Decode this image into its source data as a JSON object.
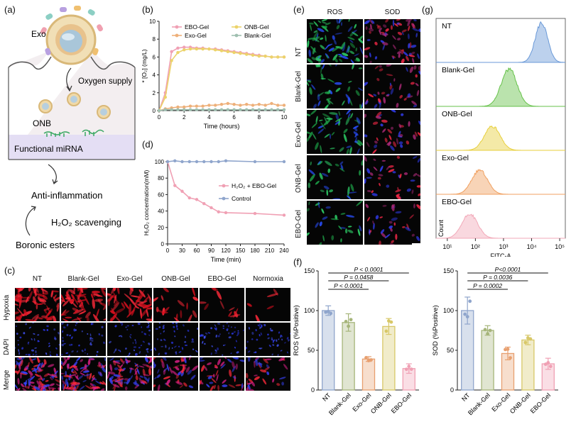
{
  "panels": {
    "a": "(a)",
    "b": "(b)",
    "c": "(c)",
    "d": "(d)",
    "e": "(e)",
    "f": "(f)",
    "g": "(g)"
  },
  "schematic": {
    "exo": "Exo",
    "oxygen_supply": "Oxygen supply",
    "onb": "ONB",
    "functional_mirna": "Functional miRNA",
    "anti_inflammation": "Anti-inflammation",
    "h2o2_scavenging": "H₂O₂ scavenging",
    "boronic_esters": "Boronic esters"
  },
  "colors": {
    "ebo": "#f0a0b4",
    "onb": "#ecd36a",
    "exo": "#eeb07a",
    "blank": "#9fbfb0",
    "control": "#8fa5cc",
    "nt": "#8fa5cc"
  },
  "micro_c": {
    "columns": [
      "NT",
      "Blank-Gel",
      "Exo-Gel",
      "ONB-Gel",
      "EBO-Gel",
      "Normoxia"
    ],
    "rows": [
      "Hypoxia",
      "DAPI",
      "Merge"
    ]
  },
  "micro_e": {
    "columns": [
      "ROS",
      "SOD"
    ],
    "rows": [
      "NT",
      "Blank-Gel",
      "Exo-Gel",
      "ONB-Gel",
      "EBO-Gel"
    ]
  },
  "chart_data": [
    {
      "id": "b",
      "type": "line",
      "xlabel": "Time (hours)",
      "ylabel": "* [O₂] (mg/L)",
      "xlim": [
        0,
        10
      ],
      "ylim": [
        0,
        10
      ],
      "xticks": [
        "0",
        "2",
        "4",
        "6",
        "8",
        "10"
      ],
      "yticks": [
        "0",
        "2",
        "4",
        "6",
        "8",
        "10"
      ],
      "series": [
        {
          "name": "EBO-Gel",
          "x": [
            0,
            0.5,
            1,
            1.5,
            2,
            2.5,
            3,
            3.5,
            4,
            4.5,
            5,
            5.5,
            6,
            6.5,
            7,
            7.5,
            8,
            8.5,
            9,
            9.5,
            10
          ],
          "y": [
            0,
            2,
            6.6,
            7.0,
            7.1,
            7.1,
            7.0,
            7.0,
            6.9,
            6.9,
            6.8,
            6.7,
            6.6,
            6.5,
            6.4,
            6.3,
            6.2,
            6.1,
            6.0,
            6.0,
            6.0
          ]
        },
        {
          "name": "ONB-Gel",
          "x": [
            0,
            0.5,
            1,
            1.5,
            2,
            2.5,
            3,
            3.5,
            4,
            4.5,
            5,
            5.5,
            6,
            6.5,
            7,
            7.5,
            8,
            8.5,
            9,
            9.5,
            10
          ],
          "y": [
            0,
            1.5,
            5.6,
            6.5,
            6.8,
            6.9,
            6.9,
            6.9,
            6.9,
            6.8,
            6.7,
            6.6,
            6.5,
            6.4,
            6.3,
            6.2,
            6.1,
            6.1,
            6.0,
            6.0,
            6.0
          ]
        },
        {
          "name": "Exo-Gel",
          "x": [
            0,
            0.5,
            1,
            1.5,
            2,
            2.5,
            3,
            3.5,
            4,
            4.5,
            5,
            5.5,
            6,
            6.5,
            7,
            7.5,
            8,
            8.5,
            9,
            9.5,
            10
          ],
          "y": [
            0,
            0.2,
            0.3,
            0.4,
            0.4,
            0.5,
            0.5,
            0.5,
            0.6,
            0.6,
            0.7,
            0.8,
            0.7,
            0.6,
            0.7,
            0.6,
            0.7,
            0.6,
            0.8,
            0.6,
            0.6
          ]
        },
        {
          "name": "Blank-Gel",
          "x": [
            0,
            0.5,
            1,
            1.5,
            2,
            2.5,
            3,
            3.5,
            4,
            4.5,
            5,
            5.5,
            6,
            6.5,
            7,
            7.5,
            8,
            8.5,
            9,
            9.5,
            10
          ],
          "y": [
            0,
            0.1,
            0.1,
            0.1,
            0.1,
            0.1,
            0.1,
            0.1,
            0.1,
            0.1,
            0.1,
            0.1,
            0.1,
            0.1,
            0.1,
            0.1,
            0.1,
            0.1,
            0.1,
            0.1,
            0.1
          ]
        }
      ]
    },
    {
      "id": "d",
      "type": "line",
      "xlabel": "Time (min)",
      "ylabel": "H₂O₂ concentration(mM)",
      "xlim": [
        0,
        240
      ],
      "ylim": [
        0,
        100
      ],
      "xticks": [
        "0",
        "30",
        "60",
        "90",
        "120",
        "150",
        "180",
        "210",
        "240"
      ],
      "yticks": [
        "0",
        "20",
        "40",
        "60",
        "80",
        "100"
      ],
      "series": [
        {
          "name": "H₂O₂ + EBO-Gel",
          "x": [
            0,
            15,
            30,
            45,
            60,
            75,
            90,
            105,
            120,
            180,
            240
          ],
          "y": [
            100,
            71,
            64,
            56,
            54,
            49,
            44,
            39,
            38,
            37,
            35
          ]
        },
        {
          "name": "Control",
          "x": [
            0,
            15,
            30,
            45,
            60,
            75,
            90,
            105,
            120,
            180,
            240
          ],
          "y": [
            100,
            101,
            100,
            100,
            100,
            100,
            100,
            100,
            101,
            100,
            100
          ]
        }
      ]
    },
    {
      "id": "f1",
      "type": "bar",
      "ylabel": "ROS (%Positive)",
      "ylim": [
        0,
        150
      ],
      "yticks": [
        "0",
        "50",
        "100",
        "150"
      ],
      "categories": [
        "NT",
        "Blank-Gel",
        "Exo-Gel",
        "ONB-Gel",
        "EBO-Gel"
      ],
      "values": [
        100,
        85,
        39,
        80,
        27
      ],
      "errors": [
        6,
        11,
        3,
        10,
        6
      ],
      "significance": [
        {
          "from": 0,
          "to": 2,
          "label": "P < 0.0001"
        },
        {
          "from": 0,
          "to": 3,
          "label": "P = 0.0458"
        },
        {
          "from": 0,
          "to": 4,
          "label": "P < 0.0001"
        }
      ]
    },
    {
      "id": "f2",
      "type": "bar",
      "ylabel": "SOD (%Positive)",
      "ylim": [
        0,
        150
      ],
      "yticks": [
        "0",
        "50",
        "100",
        "150"
      ],
      "categories": [
        "NT",
        "Blank-Gel",
        "Exo-Gel",
        "ONB-Gel",
        "EBO-Gel"
      ],
      "values": [
        100,
        75,
        46,
        63,
        33
      ],
      "errors": [
        17,
        6,
        8,
        6,
        7
      ],
      "significance": [
        {
          "from": 0,
          "to": 2,
          "label": "P = 0.0002"
        },
        {
          "from": 0,
          "to": 3,
          "label": "P = 0.0036"
        },
        {
          "from": 0,
          "to": 4,
          "label": "P<0.0001"
        }
      ]
    },
    {
      "id": "g",
      "type": "area",
      "xlabel": "FITC-A",
      "ylabel": "Count",
      "xticks": [
        "10¹",
        "10²",
        "10³",
        "10⁴",
        "10⁵"
      ],
      "series": [
        {
          "name": "NT",
          "color": "#6b9ad8",
          "peak_log": 4.35
        },
        {
          "name": "Blank-Gel",
          "color": "#66c24a",
          "peak_log": 3.2
        },
        {
          "name": "ONB-Gel",
          "color": "#e7cf3b",
          "peak_log": 2.6
        },
        {
          "name": "Exo-Gel",
          "color": "#f0a060",
          "peak_log": 2.15
        },
        {
          "name": "EBO-Gel",
          "color": "#f2a8b8",
          "peak_log": 1.8
        }
      ]
    }
  ]
}
